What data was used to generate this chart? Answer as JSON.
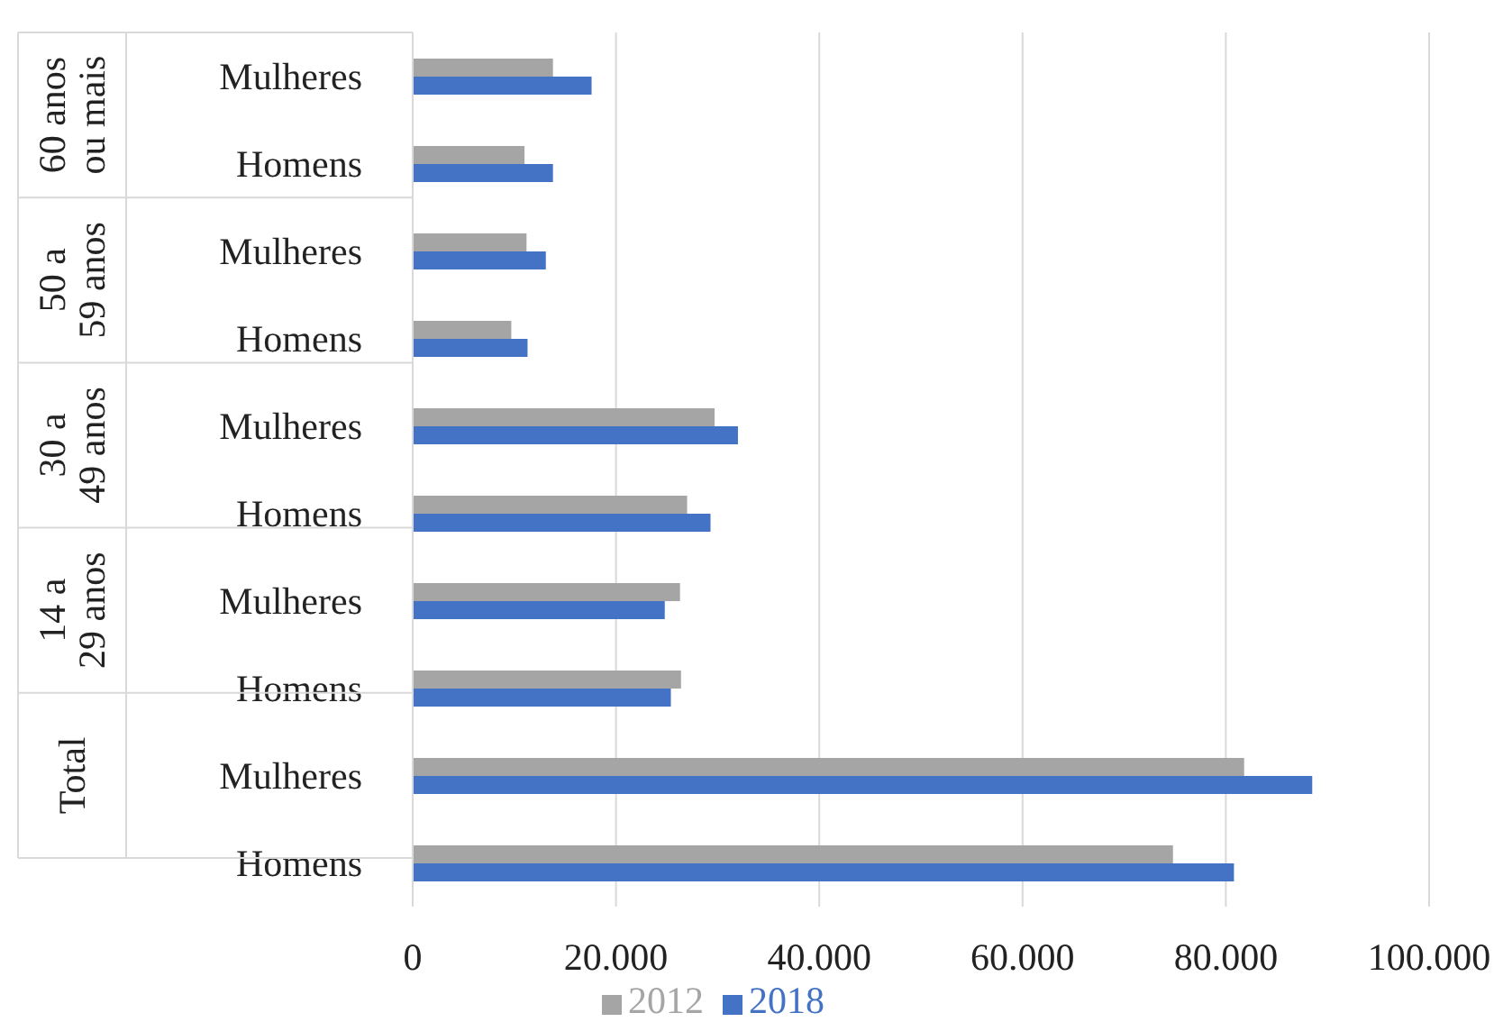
{
  "chart_data": {
    "type": "bar",
    "orientation": "horizontal",
    "categories": [
      "Mulheres",
      "Homens",
      "Mulheres",
      "Homens",
      "Mulheres",
      "Homens",
      "Mulheres",
      "Homens",
      "Mulheres",
      "Homens"
    ],
    "annotations": [
      "60 anos ou mais",
      "50 a 59 anos",
      "30 a 49 anos",
      "14 a 29 anos",
      "Total"
    ],
    "series": [
      {
        "name": "2012",
        "color": "#a5a5a5",
        "values": [
          13800,
          11000,
          11200,
          9700,
          29700,
          27000,
          26300,
          26400,
          81800,
          74800
        ]
      },
      {
        "name": "2018",
        "color": "#4472c4",
        "values": [
          17600,
          13800,
          13100,
          11300,
          32000,
          29300,
          24800,
          25400,
          88500,
          80800
        ]
      }
    ],
    "xlim": [
      0,
      100000
    ],
    "xticks": [
      0,
      {
        "value": 20000,
        "label": "20.000"
      },
      {
        "value": 40000,
        "label": "40.000"
      },
      {
        "value": 60000,
        "label": "60.000"
      },
      {
        "value": 80000,
        "label": "80.000"
      },
      {
        "value": 100000,
        "label": "100.000"
      }
    ],
    "grid": "x",
    "legend": "bottom"
  }
}
